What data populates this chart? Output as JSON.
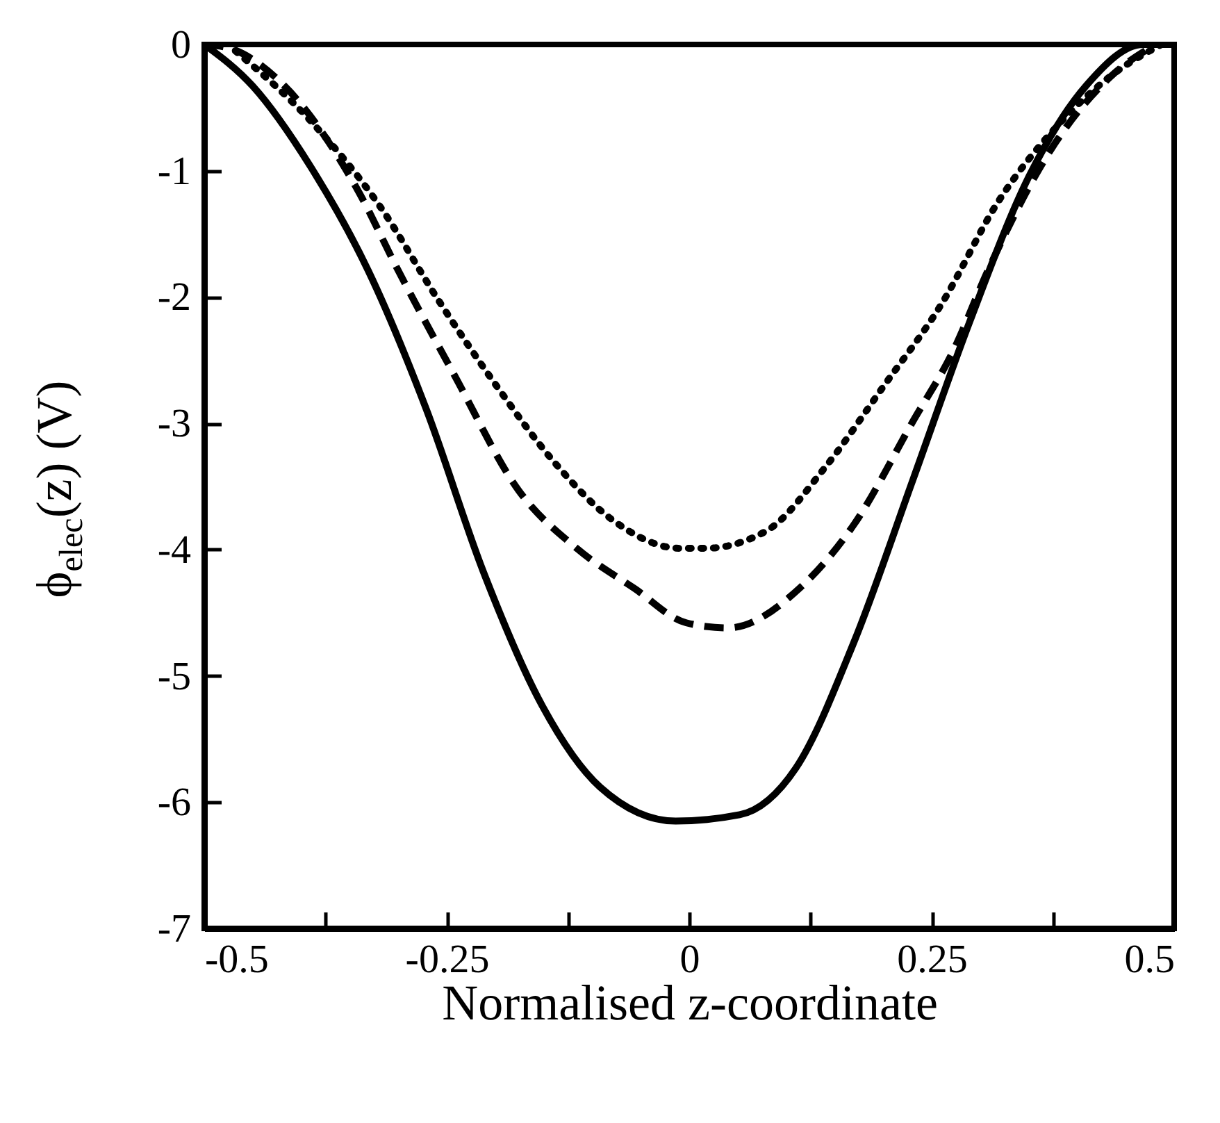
{
  "chart_data": {
    "type": "line",
    "xlabel": "Normalised z-coordinate",
    "ylabel": "ϕ$_{elec}$(z) (V)",
    "xlim": [
      -0.5,
      0.5
    ],
    "ylim": [
      -7,
      0
    ],
    "xticks": [
      -0.5,
      {
        "value": -0.375,
        "label": null
      },
      -0.25,
      {
        "value": -0.125,
        "label": null
      },
      0,
      {
        "value": 0.125,
        "label": null
      },
      0.25,
      {
        "value": 0.375,
        "label": null
      },
      0.5
    ],
    "yticks": [
      -7,
      -6,
      -5,
      -4,
      -3,
      -2,
      -1,
      0
    ],
    "grid": false,
    "marker": "none",
    "series": [
      {
        "color": "#000000",
        "line_style": "solid",
        "x": [
          -0.5,
          -0.45,
          -0.391,
          -0.331,
          -0.271,
          -0.212,
          -0.152,
          -0.092,
          -0.014,
          0.052,
          0.11,
          0.17,
          0.231,
          0.289,
          0.35,
          0.41,
          0.468,
          0.5
        ],
        "values": [
          0,
          -0.33,
          -0.96,
          -1.79,
          -2.89,
          -4.18,
          -5.23,
          -5.88,
          -6.15,
          -6.1,
          -5.73,
          -4.73,
          -3.44,
          -2.2,
          -1.05,
          -0.32,
          0,
          0
        ]
      },
      {
        "color": "#000000",
        "line_style": "dashed",
        "x": [
          -0.5,
          -0.474,
          -0.421,
          -0.342,
          -0.3,
          -0.242,
          -0.176,
          -0.116,
          -0.056,
          -0.003,
          0.04,
          0.116,
          0.17,
          0.231,
          0.272,
          0.308,
          0.374,
          0.438,
          0.481
        ],
        "values": [
          0,
          -0.03,
          -0.3,
          -1.15,
          -1.79,
          -2.62,
          -3.53,
          -3.99,
          -4.31,
          -4.58,
          -4.62,
          -4.29,
          -3.8,
          -2.98,
          -2.43,
          -1.79,
          -0.82,
          -0.23,
          0
        ]
      },
      {
        "color": "#000000",
        "line_style": "dotted",
        "x": [
          -0.468,
          -0.391,
          -0.319,
          -0.259,
          -0.199,
          -0.14,
          -0.08,
          -0.009,
          0.016,
          0.08,
          0.14,
          0.201,
          0.259,
          0.319,
          0.38,
          0.438,
          0.487
        ],
        "values": [
          -0.05,
          -0.6,
          -1.28,
          -2.02,
          -2.7,
          -3.3,
          -3.76,
          -3.99,
          -3.99,
          -3.85,
          -3.35,
          -2.7,
          -2.07,
          -1.24,
          -0.64,
          -0.23,
          0
        ]
      }
    ]
  }
}
